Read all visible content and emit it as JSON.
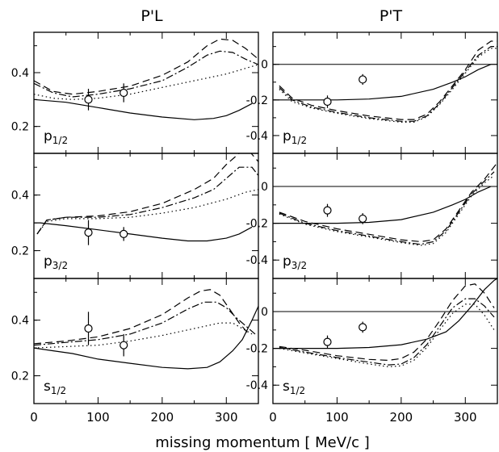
{
  "chart_data": {
    "type": "line",
    "xlabel": "missing momentum [ MeV/c ]",
    "xlim": [
      0,
      350
    ],
    "x_ticks": [
      "0",
      "100",
      "200",
      "300"
    ],
    "columns": [
      {
        "title": "P'L",
        "ylim": [
          0.1,
          0.55
        ],
        "y_ticks": [
          "0.2",
          "0.4"
        ],
        "zero_line": false
      },
      {
        "title": "P'T",
        "ylim": [
          -0.5,
          0.18
        ],
        "y_ticks": [
          "-0.4",
          "-0.2",
          "0"
        ],
        "zero_line": true
      }
    ],
    "panels": [
      {
        "column": 0,
        "row": 0,
        "label": "p1/2",
        "points": [
          {
            "x": 85,
            "y": 0.3,
            "err": 0.04
          },
          {
            "x": 140,
            "y": 0.325,
            "err": 0.035
          }
        ],
        "series": [
          {
            "style": "solid",
            "x": [
              0,
              50,
              100,
              150,
              200,
              250,
              280,
              300,
              320,
              340
            ],
            "y": [
              0.3,
              0.29,
              0.27,
              0.25,
              0.235,
              0.225,
              0.23,
              0.24,
              0.26,
              0.285
            ]
          },
          {
            "style": "dashed",
            "x": [
              0,
              30,
              60,
              100,
              150,
              200,
              240,
              270,
              290,
              310,
              330,
              350
            ],
            "y": [
              0.37,
              0.33,
              0.32,
              0.33,
              0.35,
              0.39,
              0.44,
              0.5,
              0.525,
              0.52,
              0.49,
              0.45
            ]
          },
          {
            "style": "dashdot",
            "x": [
              0,
              30,
              60,
              100,
              150,
              200,
              240,
              270,
              290,
              310,
              330,
              350
            ],
            "y": [
              0.36,
              0.325,
              0.31,
              0.32,
              0.34,
              0.37,
              0.42,
              0.465,
              0.48,
              0.475,
              0.45,
              0.43
            ]
          },
          {
            "style": "dotted",
            "x": [
              0,
              30,
              60,
              100,
              150,
              200,
              250,
              300,
              350
            ],
            "y": [
              0.32,
              0.305,
              0.3,
              0.305,
              0.32,
              0.345,
              0.37,
              0.395,
              0.43
            ]
          }
        ]
      },
      {
        "column": 0,
        "row": 1,
        "label": "p3/2",
        "points": [
          {
            "x": 85,
            "y": 0.265,
            "err": 0.045
          },
          {
            "x": 140,
            "y": 0.26,
            "err": 0.025
          }
        ],
        "series": [
          {
            "style": "solid",
            "x": [
              0,
              10,
              50,
              100,
              150,
              200,
              240,
              270,
              300,
              320,
              340
            ],
            "y": [
              0.3,
              0.3,
              0.29,
              0.275,
              0.26,
              0.245,
              0.235,
              0.235,
              0.245,
              0.26,
              0.285
            ]
          },
          {
            "style": "dashed",
            "x": [
              5,
              20,
              50,
              100,
              150,
              200,
              250,
              280,
              300,
              320,
              335,
              350
            ],
            "y": [
              0.26,
              0.31,
              0.32,
              0.325,
              0.34,
              0.37,
              0.42,
              0.46,
              0.51,
              0.55,
              0.56,
              0.52
            ]
          },
          {
            "style": "dashdot",
            "x": [
              5,
              20,
              50,
              100,
              150,
              200,
              250,
              280,
              300,
              320,
              340,
              350
            ],
            "y": [
              0.26,
              0.31,
              0.32,
              0.32,
              0.33,
              0.355,
              0.39,
              0.42,
              0.46,
              0.5,
              0.5,
              0.47
            ]
          },
          {
            "style": "dotted",
            "x": [
              5,
              20,
              50,
              100,
              150,
              200,
              250,
              300,
              330,
              350
            ],
            "y": [
              0.26,
              0.305,
              0.315,
              0.315,
              0.32,
              0.335,
              0.355,
              0.385,
              0.41,
              0.42
            ]
          }
        ]
      },
      {
        "column": 0,
        "row": 2,
        "label": "s1/2",
        "points": [
          {
            "x": 85,
            "y": 0.37,
            "err": 0.06
          },
          {
            "x": 140,
            "y": 0.31,
            "err": 0.04
          }
        ],
        "series": [
          {
            "style": "solid",
            "x": [
              0,
              30,
              60,
              100,
              150,
              200,
              240,
              270,
              290,
              310,
              325,
              340,
              350
            ],
            "y": [
              0.3,
              0.29,
              0.28,
              0.26,
              0.245,
              0.23,
              0.225,
              0.23,
              0.25,
              0.29,
              0.33,
              0.4,
              0.45
            ]
          },
          {
            "style": "dashed",
            "x": [
              0,
              50,
              100,
              150,
              200,
              240,
              260,
              275,
              290,
              305,
              320,
              335
            ],
            "y": [
              0.315,
              0.325,
              0.34,
              0.37,
              0.42,
              0.48,
              0.505,
              0.51,
              0.49,
              0.44,
              0.39,
              0.35
            ]
          },
          {
            "style": "dashdot",
            "x": [
              0,
              50,
              100,
              150,
              200,
              240,
              265,
              285,
              300,
              315,
              330,
              345
            ],
            "y": [
              0.31,
              0.32,
              0.33,
              0.35,
              0.39,
              0.44,
              0.465,
              0.465,
              0.445,
              0.41,
              0.38,
              0.35
            ]
          },
          {
            "style": "dotted",
            "x": [
              0,
              50,
              100,
              150,
              200,
              250,
              290,
              310,
              325,
              340
            ],
            "y": [
              0.3,
              0.305,
              0.31,
              0.325,
              0.345,
              0.37,
              0.39,
              0.39,
              0.37,
              0.35
            ]
          }
        ]
      },
      {
        "column": 1,
        "row": 0,
        "label": "p1/2",
        "points": [
          {
            "x": 85,
            "y": -0.21,
            "err": 0.035
          },
          {
            "x": 140,
            "y": -0.085,
            "err": 0.03
          }
        ],
        "series": [
          {
            "style": "solid",
            "x": [
              0,
              50,
              100,
              150,
              200,
              250,
              280,
              300,
              320,
              340
            ],
            "y": [
              -0.2,
              -0.2,
              -0.2,
              -0.195,
              -0.18,
              -0.14,
              -0.1,
              -0.07,
              -0.03,
              0.0
            ]
          },
          {
            "style": "dashed",
            "x": [
              10,
              30,
              60,
              100,
              150,
              200,
              220,
              240,
              260,
              280,
              300,
              320,
              340,
              350
            ],
            "y": [
              -0.12,
              -0.19,
              -0.23,
              -0.26,
              -0.29,
              -0.31,
              -0.31,
              -0.28,
              -0.21,
              -0.12,
              -0.03,
              0.08,
              0.13,
              0.13
            ]
          },
          {
            "style": "dashdot",
            "x": [
              10,
              30,
              60,
              100,
              150,
              200,
              220,
              240,
              260,
              280,
              300,
              320,
              340,
              350
            ],
            "y": [
              -0.13,
              -0.2,
              -0.24,
              -0.27,
              -0.3,
              -0.32,
              -0.32,
              -0.29,
              -0.22,
              -0.13,
              -0.04,
              0.05,
              0.1,
              0.1
            ]
          },
          {
            "style": "dotted",
            "x": [
              10,
              30,
              60,
              100,
              150,
              200,
              220,
              240,
              260,
              280,
              300,
              320,
              340,
              350
            ],
            "y": [
              -0.14,
              -0.21,
              -0.245,
              -0.275,
              -0.305,
              -0.325,
              -0.325,
              -0.295,
              -0.225,
              -0.14,
              -0.05,
              0.04,
              0.09,
              0.09
            ]
          }
        ]
      },
      {
        "column": 1,
        "row": 1,
        "label": "p3/2",
        "points": [
          {
            "x": 85,
            "y": -0.13,
            "err": 0.035
          },
          {
            "x": 140,
            "y": -0.175,
            "err": 0.03
          }
        ],
        "series": [
          {
            "style": "solid",
            "x": [
              0,
              50,
              100,
              150,
              200,
              250,
              280,
              300,
              320,
              340
            ],
            "y": [
              -0.2,
              -0.2,
              -0.2,
              -0.195,
              -0.18,
              -0.14,
              -0.1,
              -0.07,
              -0.03,
              0.0
            ]
          },
          {
            "style": "dashed",
            "x": [
              10,
              50,
              100,
              150,
              200,
              230,
              250,
              270,
              290,
              310,
              330,
              350
            ],
            "y": [
              -0.14,
              -0.19,
              -0.23,
              -0.26,
              -0.29,
              -0.3,
              -0.29,
              -0.23,
              -0.13,
              -0.03,
              0.04,
              0.13
            ]
          },
          {
            "style": "dashdot",
            "x": [
              10,
              50,
              100,
              150,
              200,
              230,
              250,
              270,
              290,
              310,
              330,
              345
            ],
            "y": [
              -0.145,
              -0.2,
              -0.24,
              -0.27,
              -0.3,
              -0.315,
              -0.3,
              -0.24,
              -0.14,
              -0.04,
              0.03,
              0.08
            ]
          },
          {
            "style": "dotted",
            "x": [
              10,
              50,
              100,
              150,
              200,
              230,
              250,
              270,
              290,
              310,
              330,
              345
            ],
            "y": [
              -0.15,
              -0.205,
              -0.245,
              -0.275,
              -0.305,
              -0.32,
              -0.31,
              -0.25,
              -0.15,
              -0.05,
              0.02,
              0.06
            ]
          }
        ]
      },
      {
        "column": 1,
        "row": 2,
        "label": "s1/2",
        "points": [
          {
            "x": 85,
            "y": -0.165,
            "err": 0.035
          },
          {
            "x": 140,
            "y": -0.085,
            "err": 0.03
          }
        ],
        "series": [
          {
            "style": "solid",
            "x": [
              0,
              50,
              100,
              150,
              200,
              240,
              270,
              290,
              310,
              330,
              345,
              350
            ],
            "y": [
              -0.2,
              -0.2,
              -0.2,
              -0.195,
              -0.18,
              -0.15,
              -0.11,
              -0.05,
              0.03,
              0.12,
              0.17,
              0.18
            ]
          },
          {
            "style": "dashed",
            "x": [
              10,
              50,
              100,
              150,
              180,
              200,
              220,
              240,
              260,
              280,
              300,
              315,
              330,
              345
            ],
            "y": [
              -0.19,
              -0.21,
              -0.24,
              -0.26,
              -0.265,
              -0.255,
              -0.22,
              -0.15,
              -0.05,
              0.06,
              0.14,
              0.15,
              0.1,
              0.02
            ]
          },
          {
            "style": "dashdot",
            "x": [
              10,
              50,
              100,
              150,
              180,
              200,
              220,
              240,
              260,
              280,
              300,
              315,
              330,
              345
            ],
            "y": [
              -0.195,
              -0.22,
              -0.25,
              -0.275,
              -0.29,
              -0.285,
              -0.25,
              -0.18,
              -0.08,
              0.02,
              0.07,
              0.07,
              0.03,
              -0.03
            ]
          },
          {
            "style": "dotted",
            "x": [
              10,
              50,
              100,
              150,
              180,
              200,
              220,
              240,
              260,
              280,
              300,
              315,
              330,
              345
            ],
            "y": [
              -0.2,
              -0.225,
              -0.255,
              -0.285,
              -0.3,
              -0.295,
              -0.265,
              -0.195,
              -0.1,
              -0.01,
              0.04,
              0.04,
              -0.02,
              -0.1
            ]
          }
        ]
      }
    ]
  }
}
